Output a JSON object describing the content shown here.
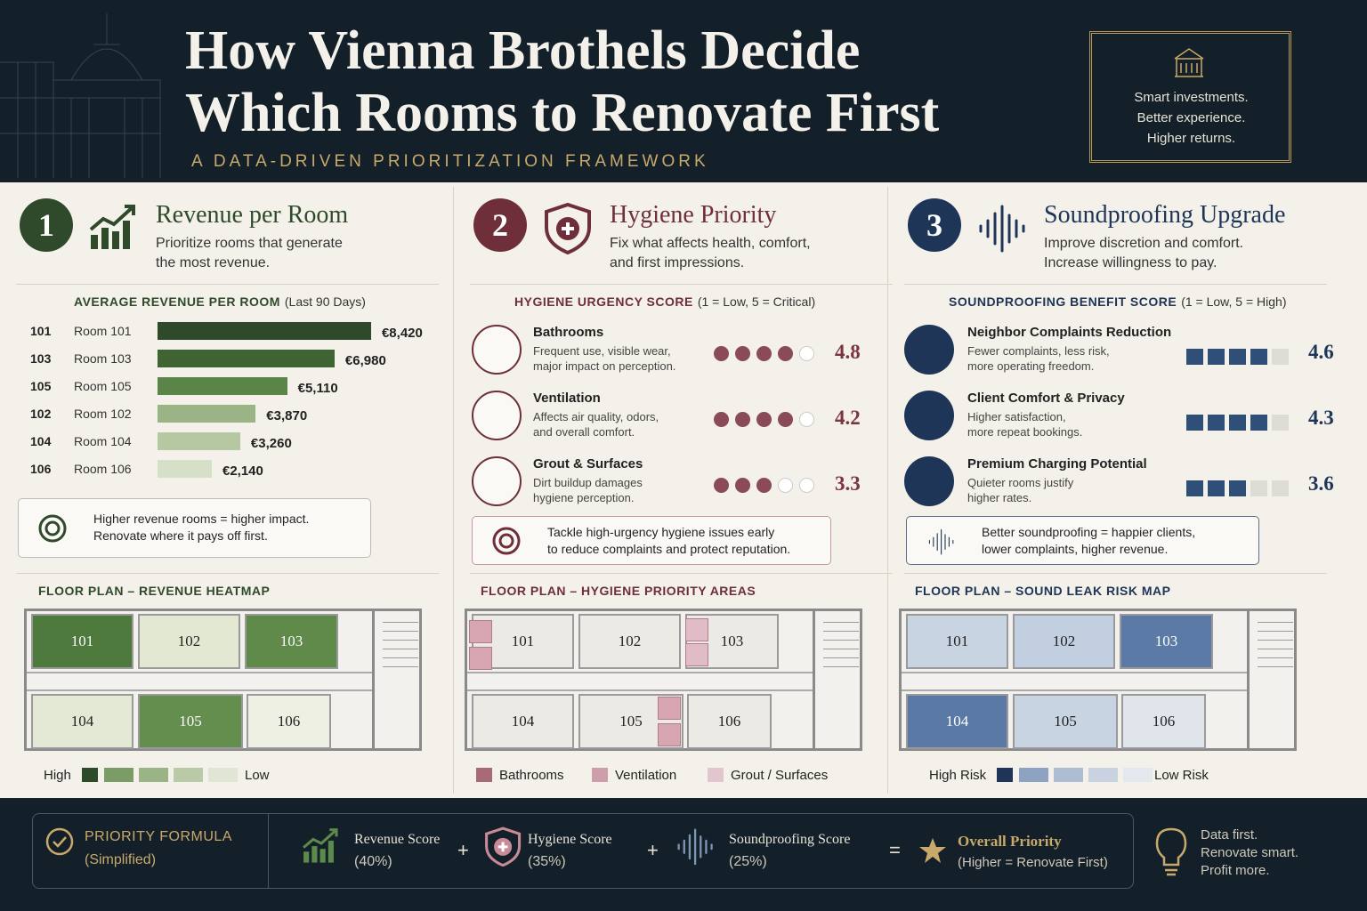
{
  "header": {
    "title_lines": [
      "How Vienna Brothels Decide",
      "Which Rooms to Renovate First"
    ],
    "subtitle": "A DATA-DRIVEN PRIORITIZATION FRAMEWORK",
    "tagline": [
      "Smart investments.",
      "Better experience.",
      "Higher returns."
    ]
  },
  "panels": [
    {
      "number": "1",
      "title": "Revenue per Room",
      "description": [
        "Prioritize rooms that generate",
        "the most revenue."
      ],
      "chart_title": "AVERAGE REVENUE PER ROOM",
      "chart_note": "(Last 90 Days)",
      "bars": [
        {
          "id": "101",
          "room": "Room 101",
          "value": 8420,
          "value_label": "€8,420",
          "color": "#2f4a2a"
        },
        {
          "id": "103",
          "room": "Room 103",
          "value": 6980,
          "value_label": "€6,980",
          "color": "#3f6332"
        },
        {
          "id": "105",
          "room": "Room 105",
          "value": 5110,
          "value_label": "€5,110",
          "color": "#5a8448"
        },
        {
          "id": "102",
          "room": "Room 102",
          "value": 3870,
          "value_label": "€3,870",
          "color": "#9bb486"
        },
        {
          "id": "104",
          "room": "Room 104",
          "value": 3260,
          "value_label": "€3,260",
          "color": "#b6c8a2"
        },
        {
          "id": "106",
          "room": "Room 106",
          "value": 2140,
          "value_label": "€2,140",
          "color": "#d6dfc8"
        }
      ],
      "callout": [
        "Higher revenue rooms = higher impact.",
        "Renovate where it pays off first."
      ],
      "floorplan_title": "FLOOR PLAN – REVENUE HEATMAP",
      "rooms": [
        {
          "label": "101",
          "color": "#4f7a3e"
        },
        {
          "label": "102",
          "color": "#e3e8d3"
        },
        {
          "label": "103",
          "color": "#5f8a4a"
        },
        {
          "label": "104",
          "color": "#e4e9d6"
        },
        {
          "label": "105",
          "color": "#638e4e"
        },
        {
          "label": "106",
          "color": "#eef0e4"
        }
      ],
      "legend": {
        "high": "High",
        "low": "Low",
        "colors": [
          "#2f4a2a",
          "#7c9c67",
          "#9bb486",
          "#b9cba6",
          "#e0e6d4"
        ]
      }
    },
    {
      "number": "2",
      "title": "Hygiene Priority",
      "description": [
        "Fix what affects health, comfort,",
        "and first impressions."
      ],
      "chart_title": "HYGIENE URGENCY SCORE",
      "chart_note": "(1 = Low, 5 = Critical)",
      "items": [
        {
          "name": "Bathrooms",
          "lines": [
            "Frequent use, visible wear,",
            "major impact on perception."
          ],
          "score": 4.8
        },
        {
          "name": "Ventilation",
          "lines": [
            "Affects air quality, odors,",
            "and overall comfort."
          ],
          "score": 4.2
        },
        {
          "name": "Grout & Surfaces",
          "lines": [
            "Dirt buildup damages",
            "hygiene perception."
          ],
          "score": 3.3
        }
      ],
      "callout": [
        "Tackle high-urgency hygiene issues early",
        "to reduce complaints and protect reputation."
      ],
      "floorplan_title": "FLOOR PLAN – HYGIENE PRIORITY AREAS",
      "rooms": [
        {
          "label": "101",
          "color": "#eceae5"
        },
        {
          "label": "102",
          "color": "#eceae5"
        },
        {
          "label": "103",
          "color": "#eceae5"
        },
        {
          "label": "104",
          "color": "#eceae5"
        },
        {
          "label": "105",
          "color": "#eceae5"
        },
        {
          "label": "106",
          "color": "#eceae5"
        }
      ],
      "legend": {
        "entries": [
          {
            "label": "Bathrooms",
            "color": "#a76a78"
          },
          {
            "label": "Ventilation",
            "color": "#cf9eab"
          },
          {
            "label": "Grout / Surfaces",
            "color": "#e3c5cd"
          }
        ]
      }
    },
    {
      "number": "3",
      "title": "Soundproofing Upgrade",
      "description": [
        "Improve discretion and comfort.",
        "Increase willingness to pay."
      ],
      "chart_title": "SOUNDPROOFING BENEFIT SCORE",
      "chart_note": "(1 = Low, 5 = High)",
      "items": [
        {
          "name": "Neighbor Complaints Reduction",
          "lines": [
            "Fewer complaints, less risk,",
            "more operating freedom."
          ],
          "score": 4.6
        },
        {
          "name": "Client Comfort & Privacy",
          "lines": [
            "Higher satisfaction,",
            "more repeat bookings."
          ],
          "score": 4.3
        },
        {
          "name": "Premium Charging Potential",
          "lines": [
            "Quieter rooms justify",
            "higher rates."
          ],
          "score": 3.6
        }
      ],
      "callout": [
        "Better soundproofing = happier clients,",
        "lower complaints, higher revenue."
      ],
      "floorplan_title": "FLOOR PLAN – SOUND LEAK RISK MAP",
      "rooms": [
        {
          "label": "101",
          "color": "#c9d4e2"
        },
        {
          "label": "102",
          "color": "#c2cfe0"
        },
        {
          "label": "103",
          "color": "#5b7ba6"
        },
        {
          "label": "104",
          "color": "#5a7aa5"
        },
        {
          "label": "105",
          "color": "#c9d4e3"
        },
        {
          "label": "106",
          "color": "#e0e5ec"
        }
      ],
      "legend": {
        "high": "High Risk",
        "low": "Low Risk",
        "colors": [
          "#1e3557",
          "#8ea3c2",
          "#aebdd3",
          "#c8d2e1",
          "#e3e7ee"
        ]
      }
    }
  ],
  "footer": {
    "label": "PRIORITY FORMULA",
    "sublabel": "(Simplified)",
    "terms": [
      {
        "name": "Revenue Score",
        "weight": "(40%)"
      },
      {
        "name": "Hygiene Score",
        "weight": "(35%)"
      },
      {
        "name": "Soundproofing Score",
        "weight": "(25%)"
      }
    ],
    "operators": [
      "+",
      "+",
      "="
    ],
    "result": {
      "name": "Overall Priority",
      "note": "(Higher = Renovate First)"
    },
    "closing": [
      "Data first.",
      "Renovate smart.",
      "Profit more."
    ]
  }
}
